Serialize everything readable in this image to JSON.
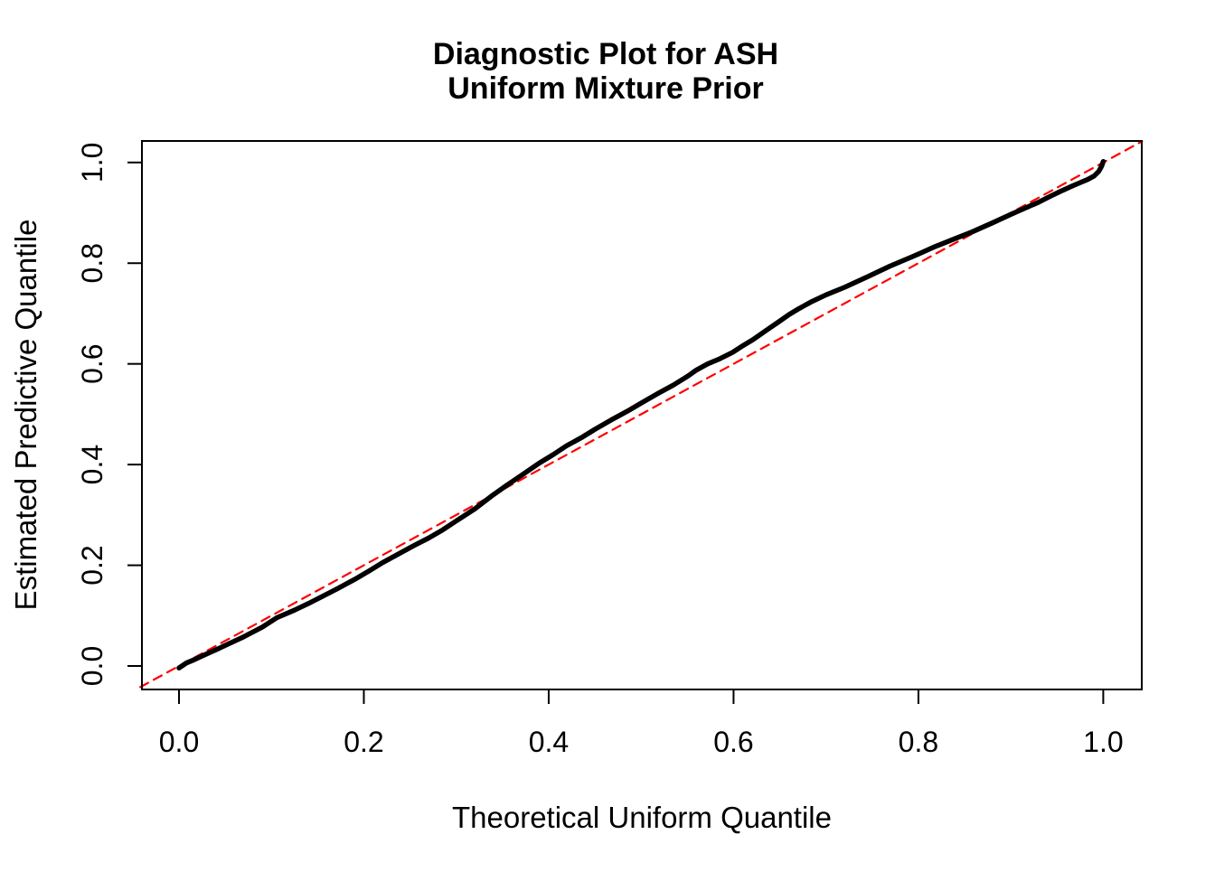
{
  "page": {
    "background": "#ffffff"
  },
  "chart_data": {
    "type": "line",
    "title": "Diagnostic Plot for ASH\nUniform Mixture Prior",
    "title_lines": [
      "Diagnostic Plot for ASH",
      "Uniform Mixture Prior"
    ],
    "xlabel": "Theoretical Uniform Quantile",
    "ylabel": "Estimated Predictive Quantile",
    "xlim": [
      -0.042,
      1.042
    ],
    "ylim": [
      -0.042,
      1.042
    ],
    "grid": false,
    "legend": null,
    "x_ticks": {
      "values": [
        0.0,
        0.2,
        0.4,
        0.6,
        0.8,
        1.0
      ],
      "labels": [
        "0.0",
        "0.2",
        "0.4",
        "0.6",
        "0.8",
        "1.0"
      ]
    },
    "y_ticks": {
      "values": [
        0.0,
        0.2,
        0.4,
        0.6,
        0.8,
        1.0
      ],
      "labels": [
        "0.0",
        "0.2",
        "0.4",
        "0.6",
        "0.8",
        "1.0"
      ]
    },
    "colors": {
      "curve": "#000000",
      "reference": "#FF0000",
      "frame": "#000000"
    },
    "series": [
      {
        "name": "estimated-predictive-quantile-curve",
        "type": "line",
        "style": "solid",
        "color": "#000000",
        "line_width": 5.5,
        "points": [
          [
            0.0,
            -0.004
          ],
          [
            0.008,
            0.006
          ],
          [
            0.017,
            0.013
          ],
          [
            0.03,
            0.024
          ],
          [
            0.041,
            0.033
          ],
          [
            0.055,
            0.045
          ],
          [
            0.07,
            0.058
          ],
          [
            0.09,
            0.077
          ],
          [
            0.106,
            0.096
          ],
          [
            0.125,
            0.111
          ],
          [
            0.14,
            0.124
          ],
          [
            0.155,
            0.138
          ],
          [
            0.171,
            0.153
          ],
          [
            0.19,
            0.172
          ],
          [
            0.205,
            0.188
          ],
          [
            0.22,
            0.205
          ],
          [
            0.237,
            0.222
          ],
          [
            0.255,
            0.24
          ],
          [
            0.27,
            0.254
          ],
          [
            0.285,
            0.27
          ],
          [
            0.3,
            0.288
          ],
          [
            0.32,
            0.312
          ],
          [
            0.34,
            0.34
          ],
          [
            0.354,
            0.358
          ],
          [
            0.37,
            0.378
          ],
          [
            0.39,
            0.403
          ],
          [
            0.405,
            0.42
          ],
          [
            0.419,
            0.437
          ],
          [
            0.435,
            0.453
          ],
          [
            0.45,
            0.47
          ],
          [
            0.467,
            0.488
          ],
          [
            0.485,
            0.506
          ],
          [
            0.5,
            0.522
          ],
          [
            0.52,
            0.543
          ],
          [
            0.535,
            0.558
          ],
          [
            0.55,
            0.575
          ],
          [
            0.56,
            0.588
          ],
          [
            0.572,
            0.6
          ],
          [
            0.585,
            0.61
          ],
          [
            0.599,
            0.623
          ],
          [
            0.61,
            0.636
          ],
          [
            0.621,
            0.648
          ],
          [
            0.635,
            0.666
          ],
          [
            0.65,
            0.685
          ],
          [
            0.66,
            0.698
          ],
          [
            0.671,
            0.71
          ],
          [
            0.685,
            0.724
          ],
          [
            0.7,
            0.737
          ],
          [
            0.72,
            0.752
          ],
          [
            0.745,
            0.773
          ],
          [
            0.769,
            0.794
          ],
          [
            0.795,
            0.814
          ],
          [
            0.818,
            0.833
          ],
          [
            0.84,
            0.849
          ],
          [
            0.858,
            0.862
          ],
          [
            0.88,
            0.88
          ],
          [
            0.9,
            0.897
          ],
          [
            0.915,
            0.909
          ],
          [
            0.93,
            0.921
          ],
          [
            0.943,
            0.933
          ],
          [
            0.954,
            0.943
          ],
          [
            0.965,
            0.952
          ],
          [
            0.975,
            0.96
          ],
          [
            0.983,
            0.966
          ],
          [
            0.99,
            0.973
          ],
          [
            0.995,
            0.982
          ],
          [
            0.998,
            0.992
          ],
          [
            1.0,
            1.002
          ]
        ]
      },
      {
        "name": "reference-line-y-equals-x",
        "type": "line",
        "style": "dashed",
        "color": "#FF0000",
        "line_width": 2.2,
        "points": [
          [
            -0.042,
            -0.042
          ],
          [
            1.042,
            1.042
          ]
        ]
      }
    ]
  }
}
